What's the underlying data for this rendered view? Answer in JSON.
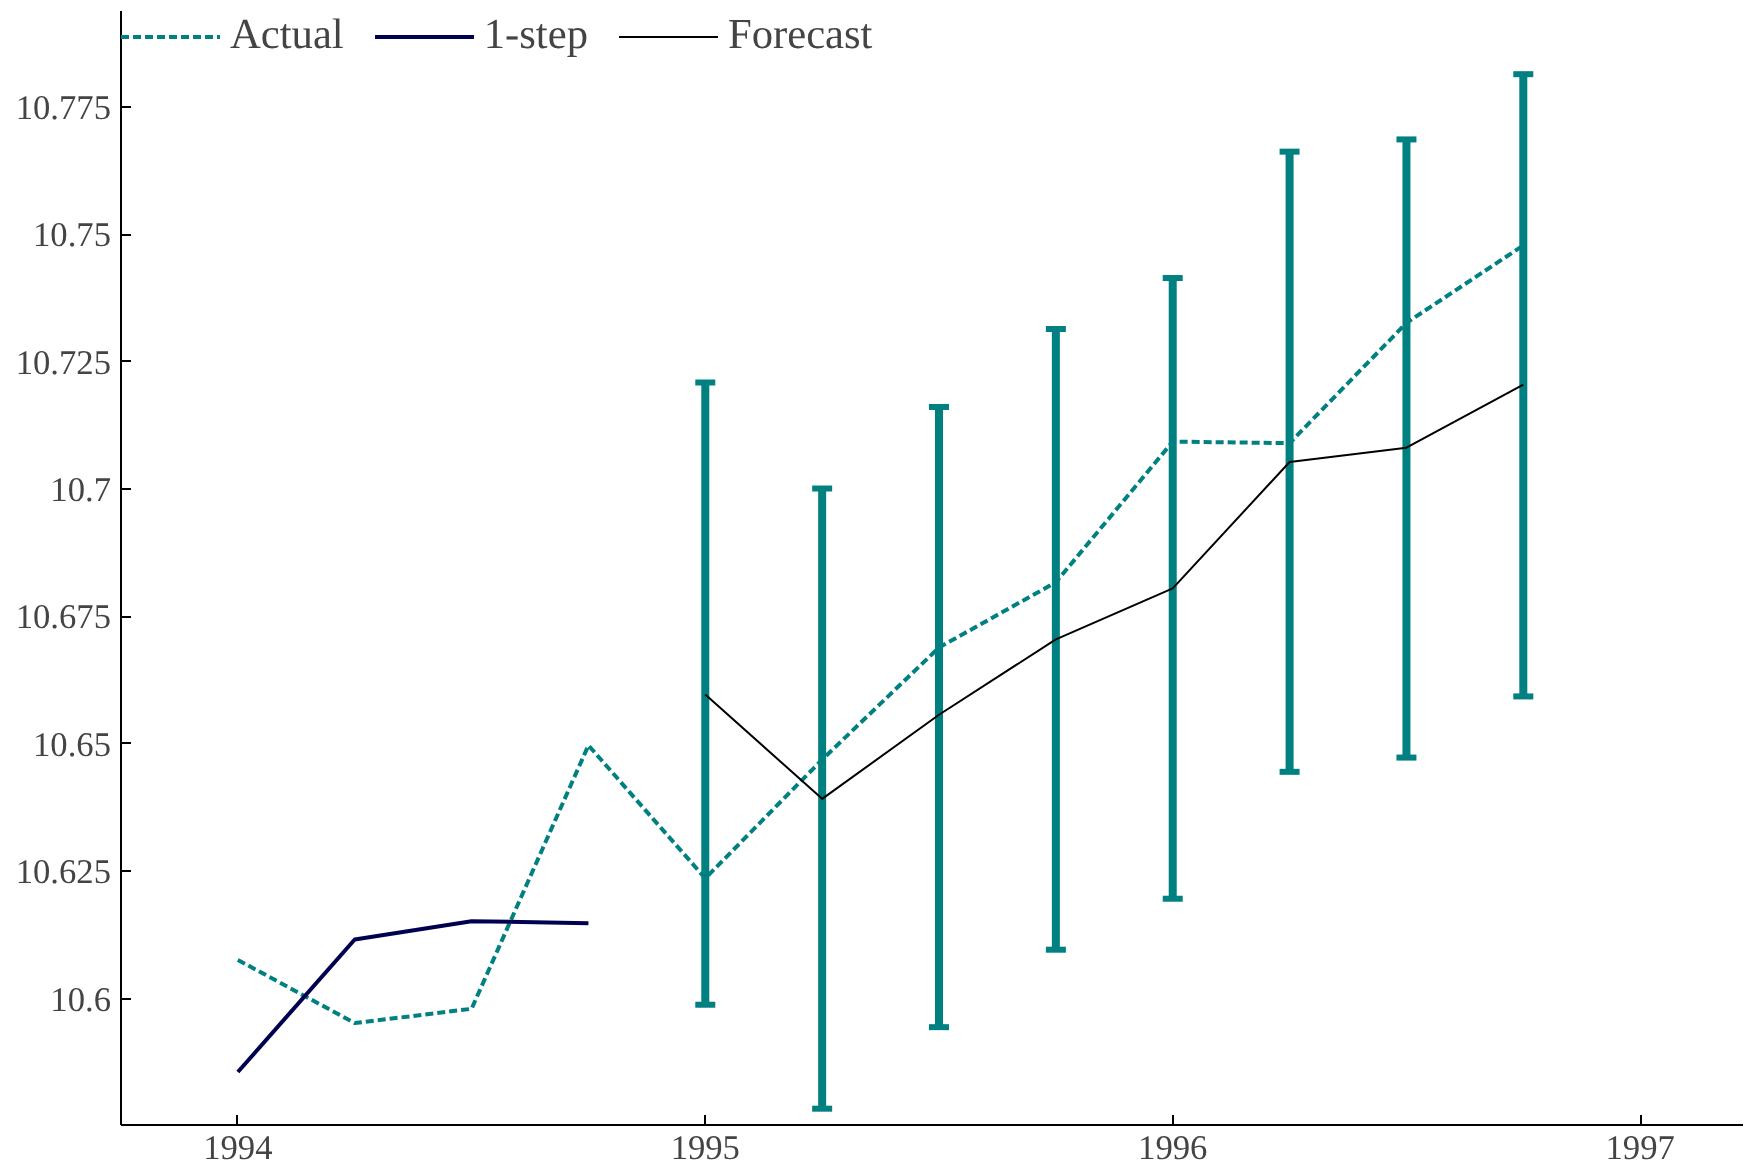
{
  "chart_data": {
    "type": "line",
    "xlim": [
      1993.75,
      1997.22
    ],
    "ylim": [
      10.5752,
      10.7938
    ],
    "xticks": [
      1994,
      1995,
      1996,
      1997
    ],
    "yticks": [
      10.6,
      10.625,
      10.65,
      10.675,
      10.7,
      10.725,
      10.75,
      10.775
    ],
    "grid": false,
    "legend": "top left",
    "series": [
      {
        "name": "Actual",
        "color": "#008080",
        "line_style": "dashed",
        "x": [
          1994,
          1994.25,
          1994.5,
          1994.75,
          1995,
          1995.25,
          1995.5,
          1995.75,
          1996,
          1996.25,
          1996.5,
          1996.75
        ],
        "values": [
          10.6076,
          10.5952,
          10.598,
          10.6497,
          10.6236,
          10.6469,
          10.6689,
          10.6817,
          10.7093,
          10.709,
          10.7326,
          10.7478
        ]
      },
      {
        "name": "1-step",
        "color": "#000050",
        "line_style": "solid",
        "x": [
          1994,
          1994.25,
          1994.5,
          1994.75
        ],
        "values": [
          10.5856,
          10.6116,
          10.6152,
          10.6148
        ]
      },
      {
        "name": "Forecast",
        "color": "#000000",
        "line_style": "solid",
        "x": [
          1995,
          1995.25,
          1995.5,
          1995.75,
          1996,
          1996.25,
          1996.5,
          1996.75
        ],
        "values": [
          10.6597,
          10.6392,
          10.6557,
          10.6705,
          10.6805,
          10.7053,
          10.7081,
          10.7205
        ],
        "errors": [
          [
            10.5988,
            10.7209
          ],
          [
            10.5784,
            10.7001
          ],
          [
            10.5944,
            10.7161
          ],
          [
            10.6096,
            10.7314
          ],
          [
            10.6196,
            10.7414
          ],
          [
            10.6445,
            10.7662
          ],
          [
            10.6473,
            10.7686
          ],
          [
            10.6593,
            10.7814
          ]
        ]
      }
    ]
  }
}
